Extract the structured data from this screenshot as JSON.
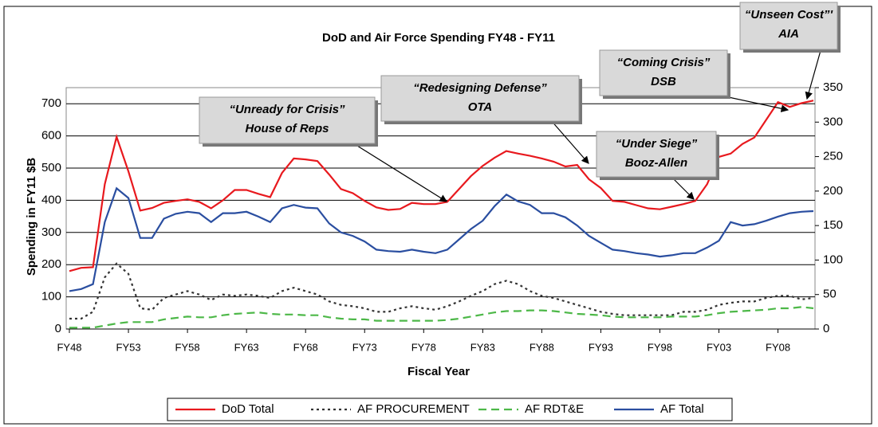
{
  "chart_data": {
    "type": "line",
    "title": "DoD and Air Force Spending FY48 - FY11",
    "xlabel": "Fiscal Year",
    "ylabel": "Spending in FY11 $B",
    "categories": [
      "FY48",
      null,
      null,
      null,
      null,
      "FY53",
      null,
      null,
      null,
      null,
      "FY58",
      null,
      null,
      null,
      null,
      "FY63",
      null,
      null,
      null,
      null,
      "FY68",
      null,
      null,
      null,
      null,
      "FY73",
      null,
      null,
      null,
      null,
      "FY78",
      null,
      null,
      null,
      null,
      "FY83",
      null,
      null,
      null,
      null,
      "FY88",
      null,
      null,
      null,
      null,
      "FY93",
      null,
      null,
      null,
      null,
      "FY98",
      null,
      null,
      null,
      null,
      "FY03",
      null,
      null,
      null,
      null,
      "FY08",
      null,
      null,
      null
    ],
    "ylim": [
      0,
      750
    ],
    "yticks": [
      0,
      100,
      200,
      300,
      400,
      500,
      600,
      700
    ],
    "y2lim": [
      0,
      350
    ],
    "y2ticks": [
      0,
      50,
      100,
      150,
      200,
      250,
      300,
      350
    ],
    "grid": true,
    "legend": "bottom",
    "series": [
      {
        "name": "DoD Total",
        "color": "#e8191e",
        "dash": "solid",
        "values": [
          180,
          190,
          192,
          450,
          597,
          490,
          368,
          376,
          392,
          398,
          403,
          395,
          375,
          400,
          432,
          432,
          420,
          410,
          485,
          530,
          527,
          522,
          480,
          435,
          422,
          398,
          378,
          370,
          373,
          392,
          388,
          388,
          395,
          435,
          475,
          507,
          532,
          553,
          545,
          538,
          530,
          520,
          505,
          510,
          465,
          438,
          398,
          395,
          385,
          375,
          372,
          380,
          388,
          398,
          450,
          535,
          545,
          575,
          595,
          650,
          705,
          690,
          702,
          710
        ]
      },
      {
        "name": "AF PROCUREMENT",
        "color": "#333333",
        "dash": "dotted",
        "axis": "y2",
        "values": [
          15,
          15,
          25,
          75,
          95,
          80,
          30,
          28,
          45,
          50,
          55,
          50,
          42,
          50,
          48,
          50,
          48,
          45,
          55,
          60,
          55,
          50,
          40,
          35,
          33,
          30,
          25,
          25,
          30,
          33,
          30,
          28,
          33,
          40,
          48,
          55,
          65,
          70,
          65,
          55,
          48,
          45,
          40,
          35,
          30,
          25,
          22,
          20,
          20,
          20,
          20,
          20,
          25,
          25,
          28,
          35,
          38,
          40,
          40,
          45,
          48,
          48,
          43,
          45
        ]
      },
      {
        "name": "AF RDT&E",
        "color": "#4db848",
        "dash": "dashed",
        "axis": "y2",
        "values": [
          2,
          2,
          2,
          5,
          8,
          10,
          10,
          10,
          14,
          16,
          18,
          17,
          17,
          20,
          22,
          23,
          24,
          22,
          21,
          21,
          20,
          20,
          17,
          15,
          14,
          14,
          12,
          12,
          12,
          12,
          12,
          12,
          13,
          15,
          18,
          21,
          24,
          26,
          26,
          27,
          27,
          26,
          24,
          22,
          21,
          20,
          18,
          17,
          17,
          17,
          17,
          18,
          18,
          18,
          20,
          23,
          25,
          26,
          27,
          28,
          30,
          30,
          32,
          30
        ]
      },
      {
        "name": "AF Total",
        "color": "#2a4ea0",
        "dash": "solid",
        "axis": "y2",
        "values": [
          55,
          58,
          65,
          155,
          204,
          190,
          132,
          132,
          160,
          167,
          170,
          168,
          155,
          168,
          168,
          170,
          163,
          155,
          175,
          180,
          176,
          175,
          153,
          140,
          135,
          127,
          115,
          113,
          112,
          115,
          112,
          110,
          115,
          130,
          145,
          157,
          178,
          195,
          185,
          180,
          168,
          168,
          162,
          150,
          135,
          125,
          115,
          113,
          110,
          108,
          105,
          107,
          110,
          110,
          118,
          128,
          155,
          150,
          152,
          157,
          163,
          168,
          170,
          171
        ]
      }
    ],
    "annotations": [
      {
        "lines": [
          "“Unready for Crisis”",
          "House of Reps"
        ]
      },
      {
        "lines": [
          "“Redesigning Defense”",
          "OTA"
        ]
      },
      {
        "lines": [
          "“Coming Crisis”",
          "DSB"
        ]
      },
      {
        "lines": [
          "“Unseen Cost”'",
          "AIA"
        ]
      },
      {
        "lines": [
          "“Under Siege”",
          "Booz-Allen"
        ]
      }
    ]
  }
}
